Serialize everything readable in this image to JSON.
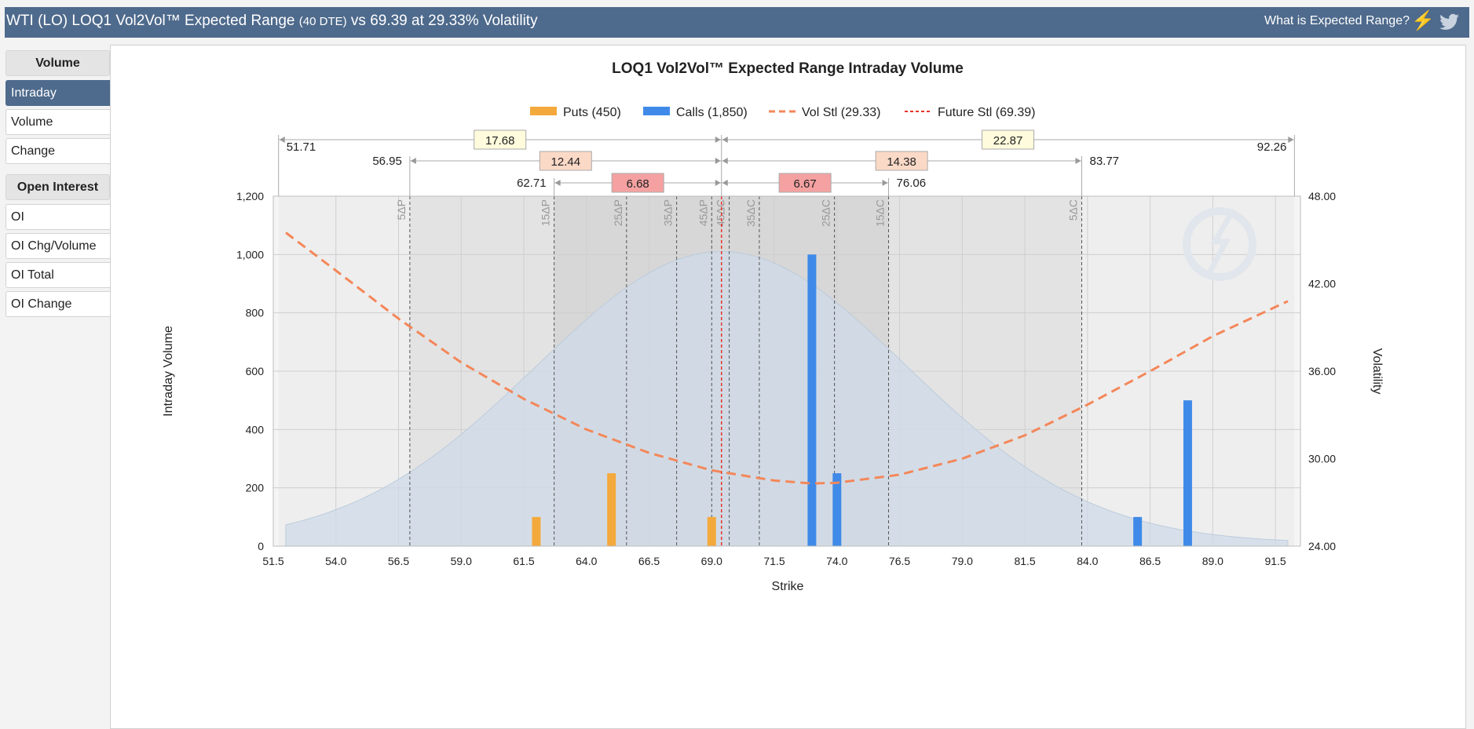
{
  "header": {
    "title_main": "WTI (LO) LOQ1 Vol2Vol™ Expected Range",
    "title_dte": "(40 DTE)",
    "title_tail": "vs 69.39 at 29.33% Volatility",
    "help_link": "What is Expected Range?",
    "icons": [
      "lightning-icon",
      "twitter-icon"
    ]
  },
  "sidebar": {
    "volume_header": "Volume",
    "volume_items": [
      "Intraday",
      "Volume",
      "Change"
    ],
    "oi_header": "Open Interest",
    "oi_items": [
      "OI",
      "OI Chg/Volume",
      "OI Total",
      "OI Change"
    ],
    "active": "Intraday"
  },
  "chart_data": {
    "type": "bar",
    "title": "LOQ1 Vol2Vol™ Expected Range Intraday Volume",
    "xlabel": "Strike",
    "ylabel": "Intraday Volume",
    "y2label": "Volatility",
    "xlim": [
      51.5,
      92.5
    ],
    "ylim": [
      0,
      1200
    ],
    "y2lim": [
      24,
      48
    ],
    "x_ticks": [
      "51.5",
      "54.0",
      "56.5",
      "59.0",
      "61.5",
      "64.0",
      "66.5",
      "69.0",
      "71.5",
      "74.0",
      "76.5",
      "79.0",
      "81.5",
      "84.0",
      "86.5",
      "89.0",
      "91.5"
    ],
    "y_ticks": [
      "0",
      "200",
      "400",
      "600",
      "800",
      "1,000",
      "1,200"
    ],
    "y2_ticks": [
      "24.00",
      "30.00",
      "36.00",
      "42.00",
      "48.00"
    ],
    "legend": [
      "Puts (450)",
      "Calls (1,850)",
      "Vol Stl (29.33)",
      "Future Stl (69.39)"
    ],
    "legend_position": "top-center",
    "grid": true,
    "colors": {
      "puts": "#f4a93c",
      "calls": "#3f8ae8",
      "vol": "#f4875a",
      "future": "#e8332a",
      "bell": "#cfdbe8"
    },
    "puts": [
      {
        "strike": 62.0,
        "value": 100
      },
      {
        "strike": 65.0,
        "value": 250
      },
      {
        "strike": 69.0,
        "value": 100
      }
    ],
    "calls": [
      {
        "strike": 73.0,
        "value": 1000
      },
      {
        "strike": 74.0,
        "value": 250
      },
      {
        "strike": 86.0,
        "value": 100
      },
      {
        "strike": 88.0,
        "value": 500
      }
    ],
    "vol_curve": [
      {
        "strike": 52.0,
        "vol": 45.5
      },
      {
        "strike": 54.0,
        "vol": 42.9
      },
      {
        "strike": 56.5,
        "vol": 39.6
      },
      {
        "strike": 59.0,
        "vol": 36.6
      },
      {
        "strike": 61.5,
        "vol": 34.1
      },
      {
        "strike": 64.0,
        "vol": 32.0
      },
      {
        "strike": 66.5,
        "vol": 30.4
      },
      {
        "strike": 69.0,
        "vol": 29.2
      },
      {
        "strike": 71.5,
        "vol": 28.5
      },
      {
        "strike": 73.0,
        "vol": 28.3
      },
      {
        "strike": 74.0,
        "vol": 28.35
      },
      {
        "strike": 76.5,
        "vol": 28.9
      },
      {
        "strike": 79.0,
        "vol": 30.0
      },
      {
        "strike": 81.5,
        "vol": 31.6
      },
      {
        "strike": 84.0,
        "vol": 33.7
      },
      {
        "strike": 86.5,
        "vol": 36.0
      },
      {
        "strike": 89.0,
        "vol": 38.4
      },
      {
        "strike": 92.0,
        "vol": 40.8
      }
    ],
    "future_settle": 69.39,
    "vol_settle": 29.33,
    "delta_lines": [
      {
        "label": "5ΔP",
        "strike": 56.95
      },
      {
        "label": "15ΔP",
        "strike": 62.71
      },
      {
        "label": "25ΔP",
        "strike": 65.6
      },
      {
        "label": "35ΔP",
        "strike": 67.6
      },
      {
        "label": "45ΔP",
        "strike": 69.0
      },
      {
        "label": "45ΔC",
        "strike": 69.7
      },
      {
        "label": "35ΔC",
        "strike": 70.9
      },
      {
        "label": "25ΔC",
        "strike": 73.9
      },
      {
        "label": "15ΔC",
        "strike": 76.06
      },
      {
        "label": "5ΔC",
        "strike": 83.77
      }
    ],
    "range_bands": [
      {
        "label": "17.68",
        "low": "51.71",
        "high": "92.26",
        "lowv": 51.71,
        "highv": 92.26,
        "color": "#fffbdc"
      },
      {
        "label": "12.44",
        "low": "56.95",
        "high": "83.77",
        "lowv": 56.95,
        "highv": 83.77,
        "color": "#fbd9c7"
      },
      {
        "label": "6.68",
        "low": "62.71",
        "high": "76.06",
        "lowv": 62.71,
        "highv": 76.06,
        "color": "#f5a1a1"
      }
    ],
    "range_right_labels": [
      "22.87",
      "14.38",
      "6.67"
    ]
  }
}
